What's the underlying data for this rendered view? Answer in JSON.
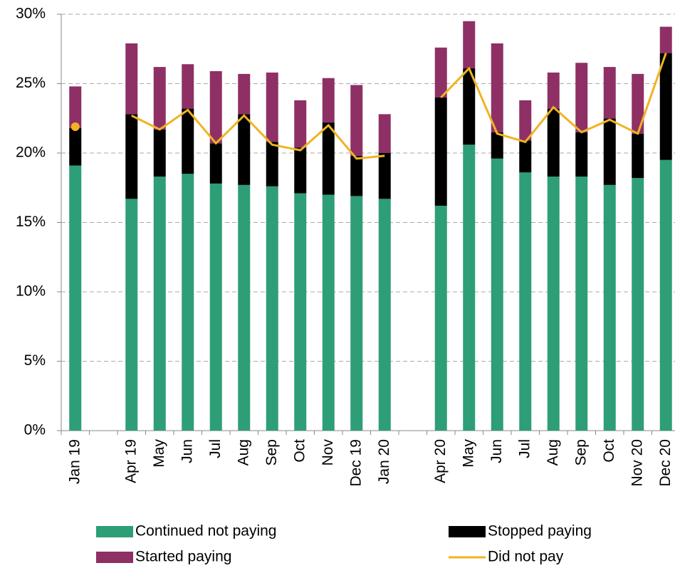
{
  "chart_data": {
    "type": "bar",
    "stacked": true,
    "categories": [
      "Jan 19",
      null,
      "Apr 19",
      "May",
      "Jun",
      "Jul",
      "Aug",
      "Sep",
      "Oct",
      "Nov",
      "Dec 19",
      "Jan 20",
      null,
      "Apr 20",
      "May",
      "Jun",
      "Jul",
      "Aug",
      "Sep",
      "Oct",
      "Nov 20",
      "Dec 20"
    ],
    "series": [
      {
        "name": "Continued not paying",
        "color": "#2e9e77",
        "values": [
          19.1,
          null,
          16.7,
          18.3,
          18.5,
          17.8,
          17.7,
          17.6,
          17.1,
          17.0,
          16.9,
          16.7,
          null,
          16.2,
          20.6,
          19.6,
          18.6,
          18.3,
          18.3,
          17.7,
          18.2,
          19.5
        ]
      },
      {
        "name": "Stopped paying",
        "color": "#000000",
        "values": [
          2.7,
          null,
          6.1,
          3.4,
          4.7,
          2.9,
          5.1,
          3.2,
          3.3,
          5.2,
          2.9,
          3.3,
          null,
          7.8,
          5.5,
          1.9,
          2.3,
          4.9,
          3.2,
          4.8,
          3.2,
          7.7
        ]
      },
      {
        "name": "Started paying",
        "color": "#8e3065",
        "values": [
          3.0,
          null,
          5.1,
          4.5,
          3.2,
          5.2,
          2.9,
          5.0,
          3.4,
          3.2,
          5.1,
          2.8,
          null,
          3.6,
          3.4,
          6.4,
          2.9,
          2.6,
          5.0,
          3.7,
          4.3,
          1.9
        ]
      },
      {
        "name": "Did not pay",
        "type": "line",
        "color": "#f0b323",
        "values": [
          21.9,
          null,
          22.7,
          21.7,
          23.1,
          20.7,
          22.7,
          20.6,
          20.2,
          22.0,
          19.6,
          19.8,
          null,
          24.0,
          26.1,
          21.4,
          20.8,
          23.3,
          21.5,
          22.4,
          21.4,
          27.2
        ]
      }
    ],
    "ylim": [
      0,
      30
    ],
    "yticks": [
      {
        "value": 0,
        "label": "0%"
      },
      {
        "value": 5,
        "label": "5%"
      },
      {
        "value": 10,
        "label": "10%"
      },
      {
        "value": 15,
        "label": "15%"
      },
      {
        "value": 20,
        "label": "20%"
      },
      {
        "value": 25,
        "label": "25%"
      },
      {
        "value": 30,
        "label": "30%"
      }
    ],
    "grid": true,
    "legend": "bottom"
  }
}
